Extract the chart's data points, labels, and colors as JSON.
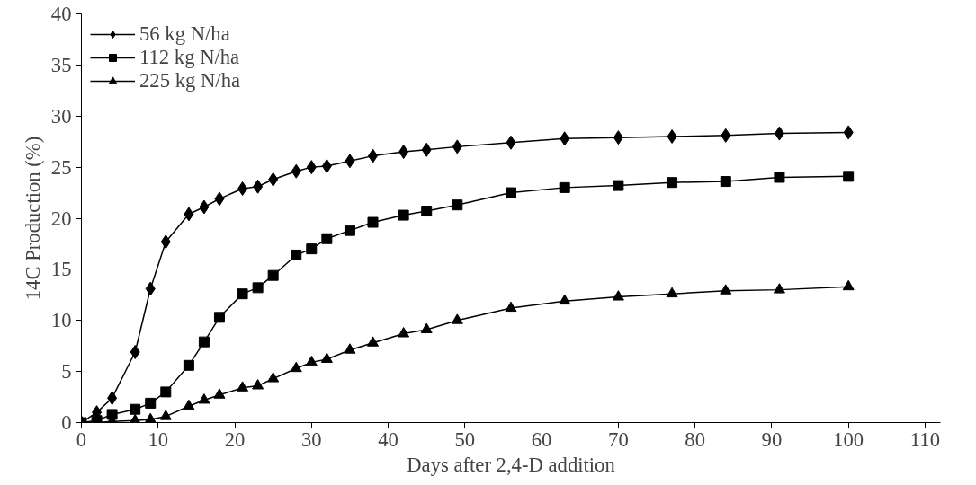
{
  "chart_data": {
    "type": "line",
    "xlabel": "Days after 2,4-D addition",
    "ylabel": "14C Production (%)",
    "x": [
      0,
      2,
      4,
      7,
      9,
      11,
      14,
      16,
      18,
      21,
      23,
      25,
      28,
      30,
      32,
      35,
      38,
      42,
      45,
      49,
      56,
      63,
      70,
      77,
      84,
      91,
      100
    ],
    "series": [
      {
        "name": "56 kg N/ha",
        "color": "#000000",
        "marker": "diamond",
        "values": [
          0,
          1,
          2.4,
          6.9,
          13.1,
          17.7,
          20.4,
          21.1,
          21.9,
          22.9,
          23.1,
          23.8,
          24.6,
          25,
          25.1,
          25.6,
          26.1,
          26.5,
          26.7,
          27,
          27.4,
          27.8,
          27.9,
          28,
          28.1,
          28.3,
          28.4
        ]
      },
      {
        "name": "112 kg N/ha",
        "color": "#000000",
        "marker": "square",
        "values": [
          0,
          0.2,
          0.8,
          1.3,
          1.9,
          3,
          5.6,
          7.9,
          10.3,
          12.6,
          13.2,
          14.4,
          16.4,
          17,
          18,
          18.8,
          19.6,
          20.3,
          20.7,
          21.3,
          22.5,
          23,
          23.2,
          23.5,
          23.6,
          24,
          24.1
        ]
      },
      {
        "name": "225 kg N/ha",
        "color": "#000000",
        "marker": "triangle",
        "values": [
          0,
          0,
          0.1,
          0.2,
          0.3,
          0.6,
          1.6,
          2.2,
          2.7,
          3.4,
          3.6,
          4.3,
          5.3,
          5.9,
          6.2,
          7.1,
          7.8,
          8.7,
          9.1,
          10,
          11.2,
          11.9,
          12.3,
          12.6,
          12.9,
          13,
          13.3
        ]
      }
    ],
    "xlim": [
      0,
      112
    ],
    "xticks": [
      0,
      10,
      20,
      30,
      40,
      50,
      60,
      70,
      80,
      90,
      100,
      110
    ],
    "ylim": [
      0,
      40
    ],
    "yticks": [
      0,
      5,
      10,
      15,
      20,
      25,
      30,
      35,
      40
    ],
    "grid": false,
    "legend": "top left",
    "line_style": "solid"
  }
}
